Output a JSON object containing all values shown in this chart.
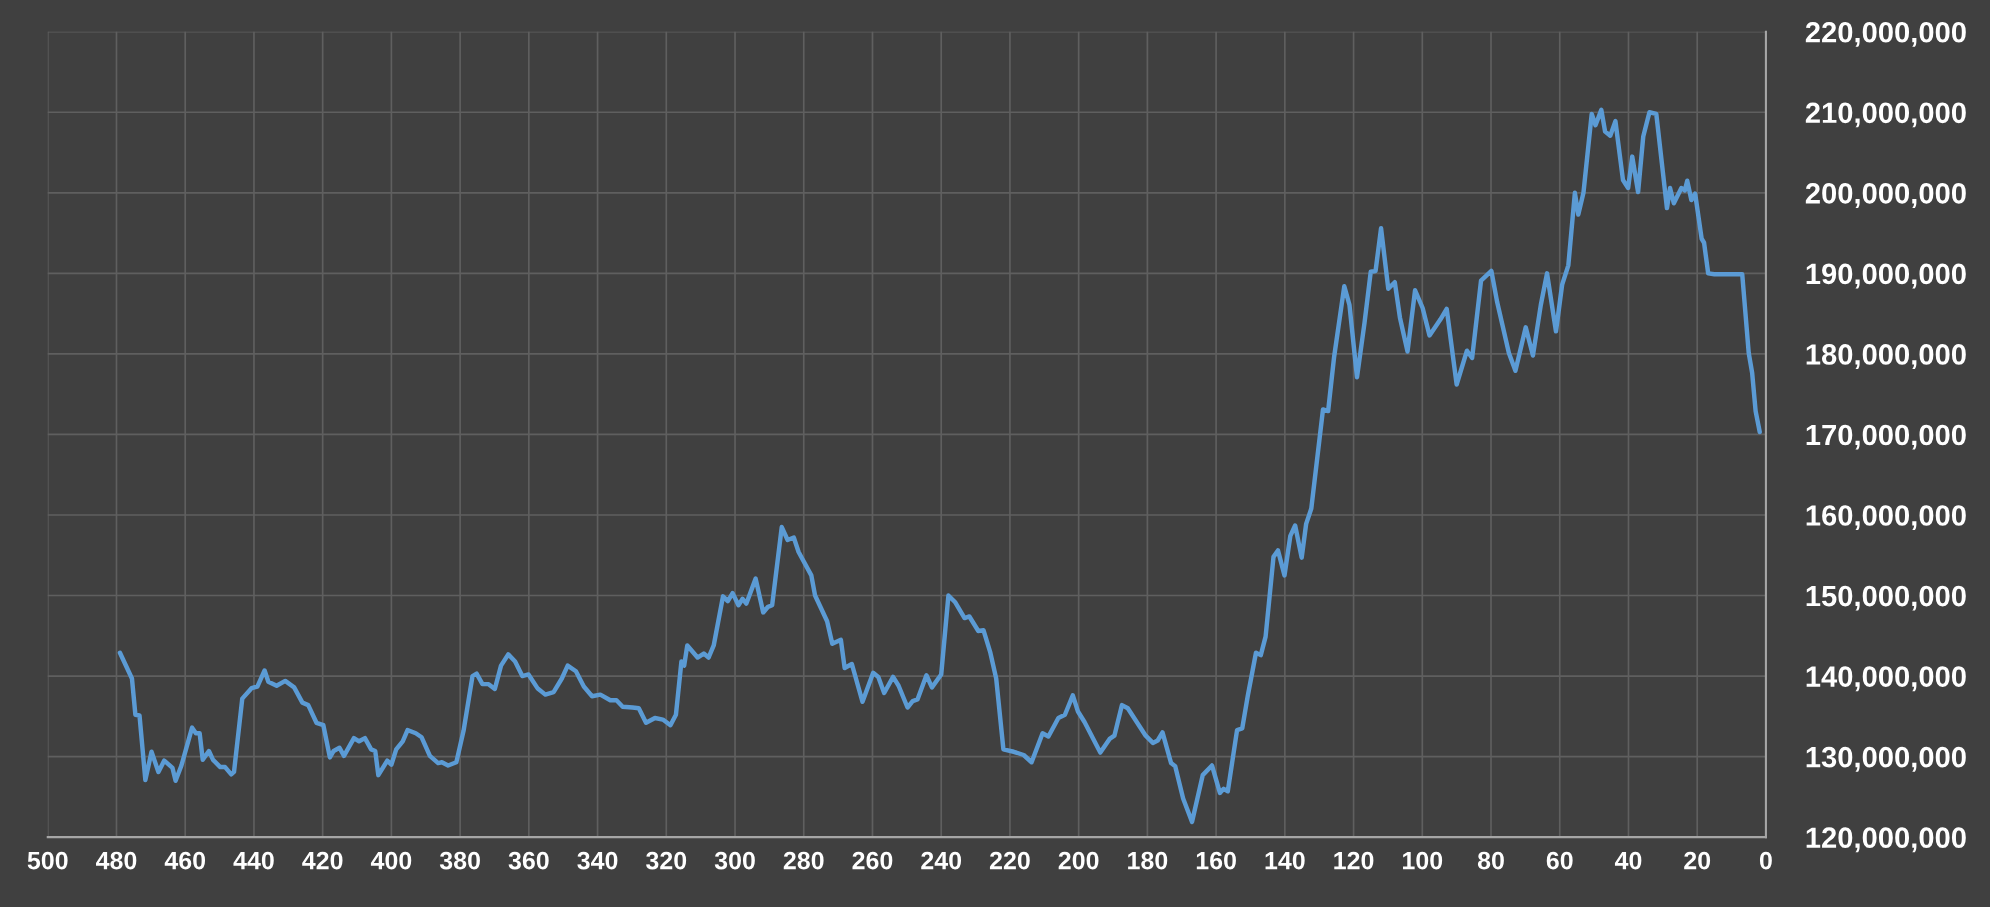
{
  "chart_data": {
    "type": "line",
    "series": [
      {
        "color": "#5b9bd5",
        "x": [
          479,
          475.5,
          474.5,
          473.3,
          471.6,
          469.8,
          467.8,
          466.1,
          463.7,
          462.8,
          461.1,
          458,
          456.9,
          455.8,
          454.9,
          453.1,
          451.9,
          449.8,
          448.4,
          446.6,
          445.8,
          443.4,
          440.7,
          439,
          436.9,
          435.8,
          433.4,
          430.9,
          428.3,
          425.9,
          424.2,
          421.8,
          419.8,
          417.9,
          416.8,
          415.1,
          413.8,
          410.9,
          409.4,
          407.7,
          405.9,
          404.7,
          403.8,
          401.2,
          400,
          398.6,
          396.7,
          395.3,
          392.9,
          391.2,
          388.8,
          386.4,
          385.3,
          383.5,
          381.1,
          379,
          376.4,
          375.2,
          373.5,
          371.7,
          369.9,
          368.1,
          366,
          364,
          361.9,
          360.1,
          357.5,
          355.2,
          352.8,
          350.4,
          348.7,
          346.3,
          344,
          341.6,
          339.2,
          336.3,
          334.5,
          332.7,
          329.8,
          328,
          325.9,
          323.3,
          321,
          318.8,
          317.2,
          315.6,
          314.8,
          313.9,
          310.9,
          309.1,
          307.7,
          306.2,
          303.5,
          302.1,
          300.7,
          299,
          297.8,
          296.7,
          294,
          291.8,
          290.4,
          289.2,
          286.4,
          284.7,
          282.9,
          281.5,
          277.8,
          276.7,
          273.2,
          271.7,
          269.2,
          268.1,
          266,
          262.9,
          259.8,
          258.3,
          256.6,
          254,
          252.4,
          249.8,
          248.3,
          246.9,
          244.3,
          242.7,
          240,
          237.9,
          236,
          233.2,
          231.8,
          229.2,
          227.7,
          225.7,
          224,
          221.9,
          218.9,
          216,
          213.7,
          210.5,
          208.8,
          205.9,
          204,
          201.7,
          200.2,
          198.3,
          193.7,
          191,
          189.6,
          187.4,
          185.7,
          180.5,
          178.4,
          177,
          175.6,
          173.1,
          171.9,
          169.6,
          167,
          163.9,
          161.2,
          158.9,
          157.8,
          156.6,
          153.9,
          152.4,
          150.8,
          148.4,
          147,
          145.6,
          143.3,
          142,
          140.1,
          138.4,
          137,
          135.1,
          133.8,
          132.3,
          128.9,
          127.4,
          125.7,
          122.7,
          121.2,
          119,
          116.8,
          115,
          113.6,
          112,
          109.9,
          108,
          106.5,
          104.3,
          102.1,
          99.9,
          97.9,
          94.7,
          92.9,
          90,
          87,
          85.5,
          82.9,
          79.9,
          78.2,
          74.8,
          72.9,
          69.9,
          67.8,
          65.5,
          63.7,
          61.1,
          59.3,
          57.5,
          55.6,
          54.6,
          53.1,
          50.7,
          49.6,
          47.9,
          46.8,
          45.3,
          43.8,
          41.6,
          40.1,
          38.9,
          37.2,
          35.7,
          33.9,
          31.9,
          28.8,
          27.9,
          26.8,
          24.6,
          23.6,
          22.9,
          21.7,
          20.6,
          18.7,
          18,
          16.8,
          15,
          6.9,
          5,
          4,
          3,
          1.8
        ],
        "values": [
          142900000,
          139700000,
          135200000,
          135100000,
          127100000,
          130600000,
          128100000,
          129500000,
          128600000,
          127000000,
          128900000,
          133600000,
          132900000,
          132900000,
          129600000,
          130700000,
          129600000,
          128700000,
          128700000,
          127800000,
          128100000,
          137200000,
          138500000,
          138700000,
          140700000,
          139300000,
          138800000,
          139400000,
          138600000,
          136700000,
          136400000,
          134200000,
          133900000,
          129900000,
          130700000,
          131100000,
          130100000,
          132300000,
          131900000,
          132300000,
          130900000,
          130700000,
          127700000,
          129500000,
          129000000,
          130900000,
          131900000,
          133300000,
          132900000,
          132400000,
          130100000,
          129200000,
          129300000,
          128900000,
          129300000,
          133200000,
          140000000,
          140300000,
          139000000,
          139000000,
          138400000,
          141300000,
          142700000,
          141800000,
          140000000,
          140200000,
          138500000,
          137700000,
          138000000,
          139700000,
          141300000,
          140600000,
          138700000,
          137500000,
          137700000,
          137000000,
          137000000,
          136200000,
          136100000,
          136000000,
          134200000,
          134800000,
          134600000,
          133900000,
          135200000,
          141800000,
          141300000,
          143800000,
          142300000,
          142800000,
          142300000,
          143800000,
          149900000,
          149300000,
          150300000,
          148800000,
          149600000,
          149000000,
          152100000,
          147900000,
          148600000,
          148800000,
          158500000,
          156900000,
          157200000,
          155400000,
          152500000,
          150000000,
          146800000,
          144000000,
          144500000,
          141000000,
          141500000,
          136800000,
          140400000,
          139900000,
          137900000,
          139900000,
          138800000,
          136100000,
          136900000,
          137100000,
          140100000,
          138600000,
          140200000,
          150000000,
          149200000,
          147200000,
          147400000,
          145600000,
          145700000,
          142900000,
          139700000,
          130900000,
          130600000,
          130200000,
          129300000,
          132900000,
          132500000,
          134800000,
          135200000,
          137600000,
          135600000,
          134300000,
          130500000,
          132200000,
          132600000,
          136400000,
          136000000,
          132600000,
          131700000,
          132000000,
          133000000,
          129200000,
          128800000,
          124800000,
          121900000,
          127700000,
          128900000,
          125500000,
          126000000,
          125700000,
          133300000,
          133500000,
          137500000,
          142900000,
          142600000,
          144900000,
          154800000,
          155600000,
          152500000,
          157400000,
          158700000,
          154700000,
          158900000,
          160800000,
          173100000,
          172900000,
          179500000,
          188400000,
          186100000,
          177100000,
          183900000,
          190200000,
          190300000,
          195600000,
          188100000,
          188900000,
          184500000,
          180300000,
          187900000,
          185700000,
          182300000,
          184300000,
          185600000,
          176200000,
          180400000,
          179500000,
          189100000,
          190300000,
          186400000,
          180100000,
          177900000,
          183300000,
          179800000,
          186100000,
          190000000,
          182800000,
          188600000,
          191000000,
          200000000,
          197300000,
          200000000,
          209800000,
          208400000,
          210300000,
          207600000,
          207100000,
          208900000,
          201600000,
          200600000,
          204500000,
          200100000,
          207000000,
          210000000,
          209800000,
          198100000,
          200600000,
          198700000,
          200600000,
          200300000,
          201500000,
          199100000,
          199900000,
          194300000,
          193800000,
          190000000,
          189900000,
          189900000,
          180100000,
          177600000,
          172900000,
          170300000
        ]
      }
    ],
    "xlim": [
      500,
      0
    ],
    "xticks": [
      500,
      480,
      460,
      440,
      420,
      400,
      380,
      360,
      340,
      320,
      300,
      280,
      260,
      240,
      220,
      200,
      180,
      160,
      140,
      120,
      100,
      80,
      60,
      40,
      20,
      0
    ],
    "ylim": [
      120000000,
      220000000
    ],
    "yticks": [
      {
        "value": 120000000,
        "label": "120,000,000"
      },
      {
        "value": 130000000,
        "label": "130,000,000"
      },
      {
        "value": 140000000,
        "label": "140,000,000"
      },
      {
        "value": 150000000,
        "label": "150,000,000"
      },
      {
        "value": 160000000,
        "label": "160,000,000"
      },
      {
        "value": 170000000,
        "label": "170,000,000"
      },
      {
        "value": 180000000,
        "label": "180,000,000"
      },
      {
        "value": 190000000,
        "label": "190,000,000"
      },
      {
        "value": 200000000,
        "label": "200,000,000"
      },
      {
        "value": 210000000,
        "label": "210,000,000"
      },
      {
        "value": 220000000,
        "label": "220,000,000"
      }
    ],
    "grid": true
  }
}
